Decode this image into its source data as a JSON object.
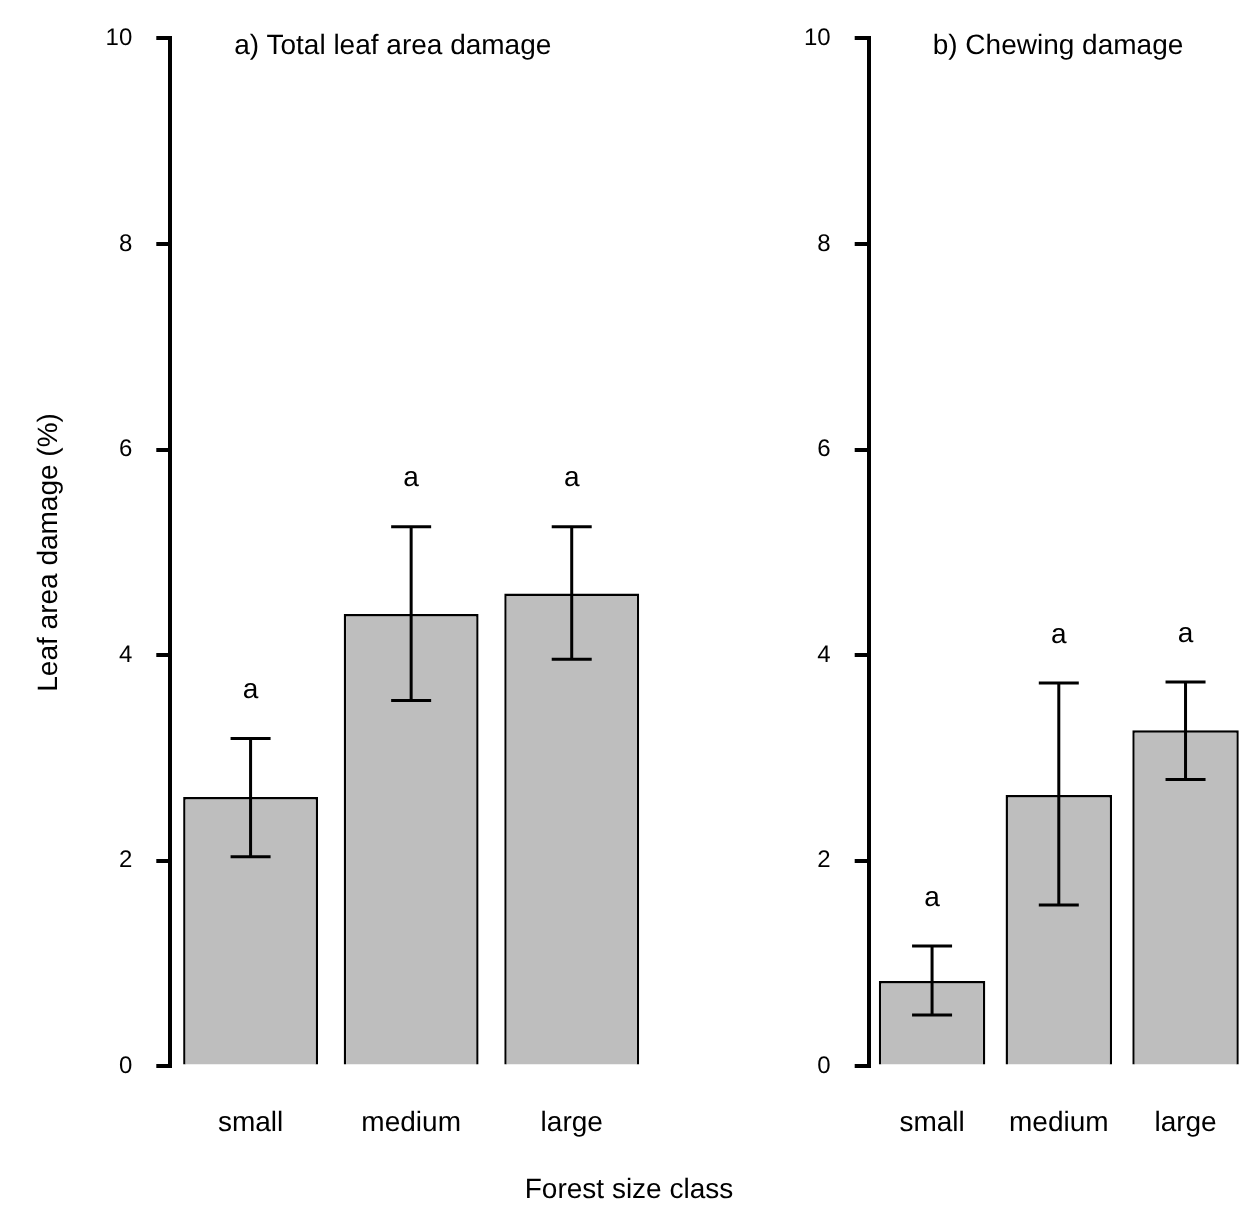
{
  "chart_data": [
    {
      "type": "bar",
      "title": "a) Total leaf area damage",
      "xlabel": "Forest size class",
      "ylabel": "Leaf area damage (%)",
      "categories": [
        "small",
        "medium",
        "large"
      ],
      "values": [
        2.62,
        4.4,
        4.6
      ],
      "color": "#bebebe",
      "errors": [
        [
          2.04,
          3.19
        ],
        [
          3.56,
          5.25
        ],
        [
          3.96,
          5.25
        ]
      ],
      "ylim": [
        0,
        10
      ],
      "yticks": [
        0,
        2,
        4,
        6,
        8,
        10
      ],
      "grid": false,
      "legend": false,
      "annotations": [
        "a",
        "a",
        "a"
      ]
    },
    {
      "type": "bar",
      "title": "b) Chewing damage",
      "categories": [
        "small",
        "medium",
        "large"
      ],
      "values": [
        0.83,
        2.64,
        3.27
      ],
      "color": "#bebebe",
      "errors": [
        [
          0.5,
          1.17
        ],
        [
          1.57,
          3.73
        ],
        [
          2.79,
          3.74
        ]
      ],
      "ylim": [
        0,
        10
      ],
      "yticks": [
        0,
        2,
        4,
        6,
        8,
        10
      ],
      "grid": false,
      "legend": false,
      "annotations": [
        "a",
        "a",
        "a"
      ]
    }
  ]
}
